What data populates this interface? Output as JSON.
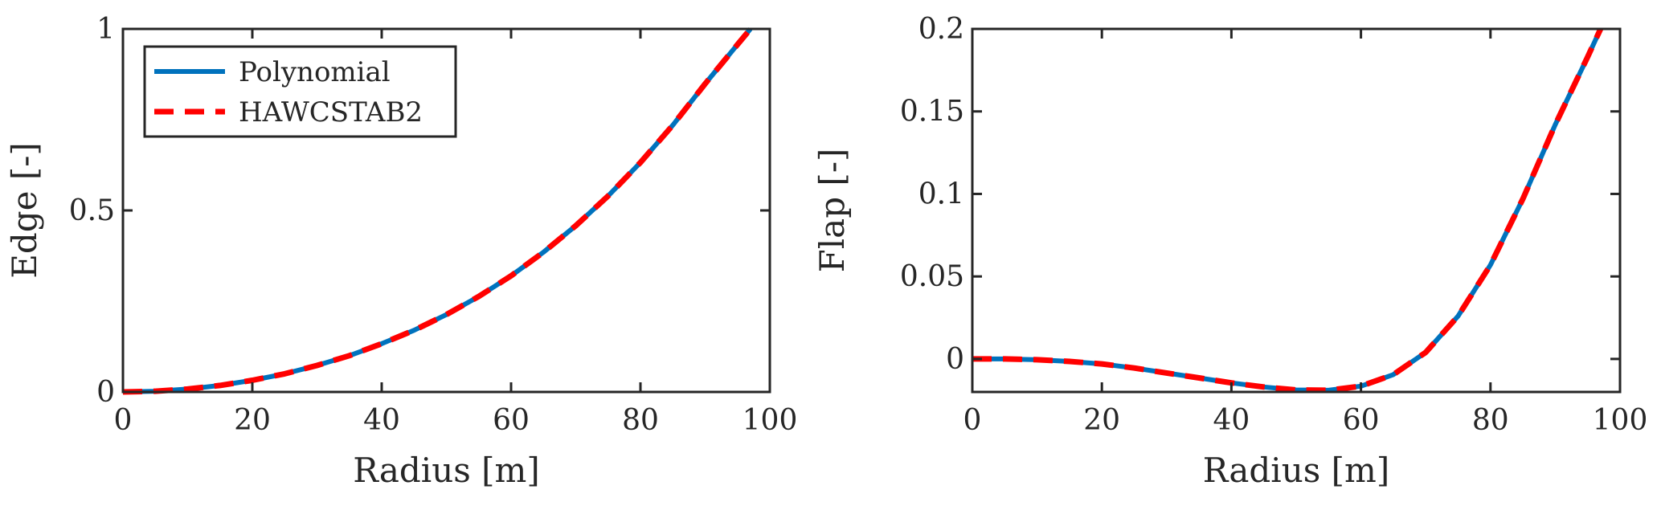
{
  "chart_data": [
    {
      "type": "line",
      "xlabel": "Radius [m]",
      "ylabel": "Edge [-]",
      "xlim": [
        0,
        100
      ],
      "ylim": [
        0,
        1
      ],
      "xticks": [
        0,
        20,
        40,
        60,
        80,
        100
      ],
      "xtick_labels": [
        "0",
        "20",
        "40",
        "60",
        "80",
        "100"
      ],
      "yticks": [
        0,
        0.5,
        1
      ],
      "ytick_labels": [
        "0",
        "0.5",
        "1"
      ],
      "grid": false,
      "legend": {
        "position": "top-left"
      },
      "series": [
        {
          "name": "Polynomial",
          "color": "#0072BD",
          "style": "solid",
          "x": [
            0,
            5,
            10,
            15,
            20,
            25,
            30,
            35,
            40,
            45,
            50,
            55,
            60,
            65,
            70,
            75,
            80,
            85,
            90,
            95,
            97
          ],
          "y": [
            0,
            0.002,
            0.008,
            0.018,
            0.032,
            0.05,
            0.073,
            0.1,
            0.133,
            0.17,
            0.213,
            0.263,
            0.32,
            0.385,
            0.458,
            0.54,
            0.632,
            0.735,
            0.849,
            0.957,
            1.0
          ]
        },
        {
          "name": "HAWCSTAB2",
          "color": "#FF0000",
          "style": "dashed",
          "x": [
            0,
            5,
            10,
            15,
            20,
            25,
            30,
            35,
            40,
            45,
            50,
            55,
            60,
            65,
            70,
            75,
            80,
            85,
            90,
            95,
            97
          ],
          "y": [
            0,
            0.002,
            0.008,
            0.018,
            0.032,
            0.05,
            0.073,
            0.1,
            0.133,
            0.17,
            0.213,
            0.263,
            0.32,
            0.385,
            0.458,
            0.54,
            0.632,
            0.735,
            0.849,
            0.957,
            1.0
          ]
        }
      ]
    },
    {
      "type": "line",
      "xlabel": "Radius [m]",
      "ylabel": "Flap [-]",
      "xlim": [
        0,
        100
      ],
      "ylim": [
        -0.02,
        0.2
      ],
      "xticks": [
        0,
        20,
        40,
        60,
        80,
        100
      ],
      "xtick_labels": [
        "0",
        "20",
        "40",
        "60",
        "80",
        "100"
      ],
      "yticks": [
        0,
        0.05,
        0.1,
        0.15,
        0.2
      ],
      "ytick_labels": [
        "0",
        "0.05",
        "0.1",
        "0.15",
        "0.2"
      ],
      "grid": false,
      "series": [
        {
          "name": "Polynomial",
          "color": "#0072BD",
          "style": "solid",
          "x": [
            0,
            5,
            10,
            15,
            20,
            25,
            30,
            35,
            40,
            45,
            50,
            55,
            60,
            65,
            70,
            75,
            80,
            85,
            90,
            95,
            97
          ],
          "y": [
            0,
            0,
            -0.0005,
            -0.0015,
            -0.003,
            -0.0055,
            -0.0085,
            -0.0115,
            -0.0145,
            -0.017,
            -0.0188,
            -0.019,
            -0.0165,
            -0.0095,
            0.004,
            0.026,
            0.057,
            0.097,
            0.142,
            0.183,
            0.2
          ]
        },
        {
          "name": "HAWCSTAB2",
          "color": "#FF0000",
          "style": "dashed",
          "x": [
            0,
            5,
            10,
            15,
            20,
            25,
            30,
            35,
            40,
            45,
            50,
            55,
            60,
            65,
            70,
            75,
            80,
            85,
            90,
            95,
            97
          ],
          "y": [
            0,
            0,
            -0.0005,
            -0.0015,
            -0.003,
            -0.0055,
            -0.0085,
            -0.0115,
            -0.0145,
            -0.017,
            -0.0188,
            -0.019,
            -0.0165,
            -0.0095,
            0.004,
            0.026,
            0.057,
            0.097,
            0.142,
            0.183,
            0.2
          ]
        }
      ]
    }
  ]
}
